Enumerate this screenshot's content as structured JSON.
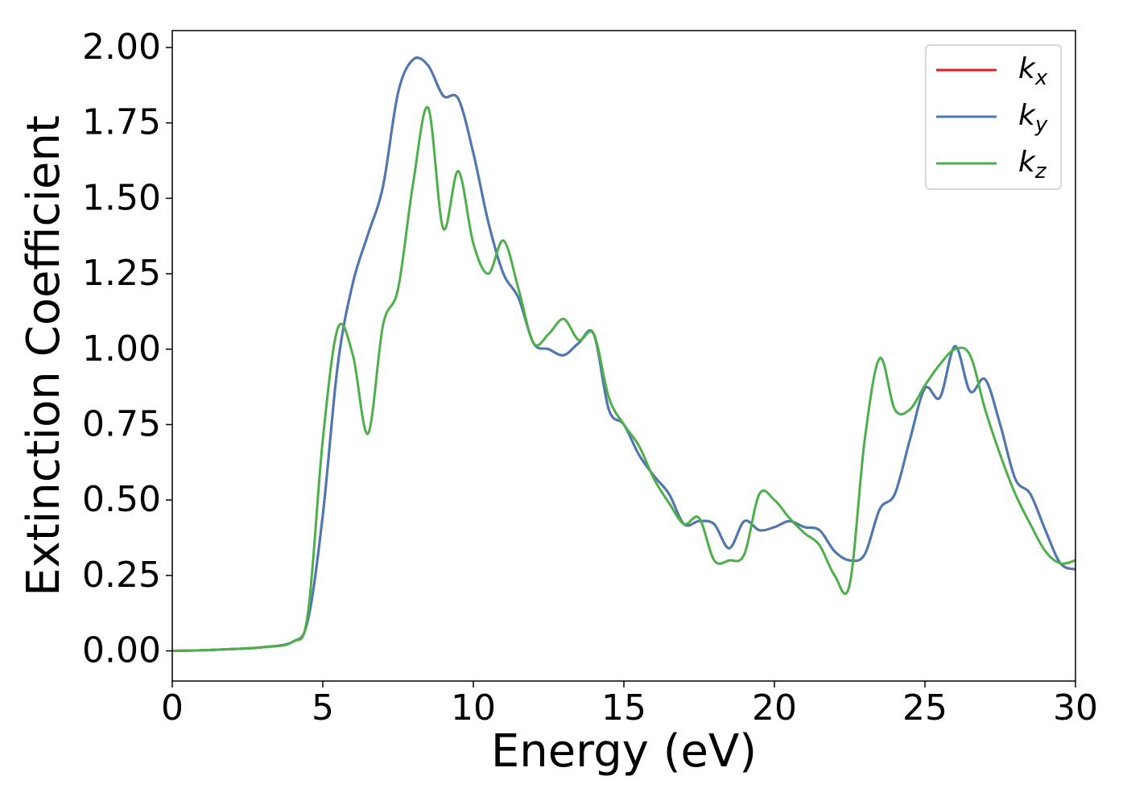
{
  "chart_data": {
    "type": "line",
    "xlabel": "Energy (eV)",
    "ylabel": "Extinction Coefficient",
    "x": [
      0,
      1,
      2,
      3,
      4,
      4.5,
      5,
      5.5,
      6,
      6.5,
      7,
      7.5,
      8,
      8.5,
      9,
      9.5,
      10,
      10.5,
      11,
      11.5,
      12,
      12.5,
      13,
      13.5,
      14,
      14.5,
      15,
      15.5,
      16,
      16.5,
      17,
      17.5,
      18,
      18.5,
      19,
      19.5,
      20,
      20.5,
      21,
      21.5,
      22,
      22.5,
      23,
      23.5,
      24,
      24.5,
      25,
      25.5,
      26,
      26.5,
      27,
      27.5,
      28,
      28.5,
      29,
      29.5,
      30
    ],
    "series": [
      {
        "name": "k",
        "subscript": "x",
        "color": "#e41a1c",
        "values": [
          0,
          0.002,
          0.006,
          0.012,
          0.03,
          0.1,
          0.45,
          0.95,
          1.22,
          1.38,
          1.54,
          1.85,
          1.96,
          1.94,
          1.84,
          1.83,
          1.65,
          1.42,
          1.25,
          1.17,
          1.02,
          1.0,
          0.98,
          1.02,
          1.05,
          0.8,
          0.75,
          0.65,
          0.58,
          0.52,
          0.42,
          0.43,
          0.42,
          0.34,
          0.43,
          0.4,
          0.41,
          0.43,
          0.41,
          0.4,
          0.33,
          0.3,
          0.32,
          0.47,
          0.52,
          0.7,
          0.87,
          0.84,
          1.01,
          0.86,
          0.9,
          0.75,
          0.57,
          0.52,
          0.4,
          0.29,
          0.27
        ]
      },
      {
        "name": "k",
        "subscript": "y",
        "color": "#4a7ab4",
        "values": [
          0,
          0.002,
          0.006,
          0.012,
          0.03,
          0.1,
          0.45,
          0.95,
          1.22,
          1.38,
          1.54,
          1.85,
          1.96,
          1.94,
          1.84,
          1.83,
          1.65,
          1.42,
          1.25,
          1.17,
          1.02,
          1.0,
          0.98,
          1.02,
          1.05,
          0.8,
          0.75,
          0.65,
          0.58,
          0.52,
          0.42,
          0.43,
          0.42,
          0.34,
          0.43,
          0.4,
          0.41,
          0.43,
          0.41,
          0.4,
          0.33,
          0.3,
          0.32,
          0.47,
          0.52,
          0.7,
          0.87,
          0.84,
          1.01,
          0.86,
          0.9,
          0.75,
          0.57,
          0.52,
          0.4,
          0.29,
          0.27
        ]
      },
      {
        "name": "k",
        "subscript": "z",
        "color": "#4daf4a",
        "values": [
          0,
          0.002,
          0.006,
          0.012,
          0.03,
          0.12,
          0.7,
          1.07,
          0.98,
          0.72,
          1.08,
          1.2,
          1.55,
          1.8,
          1.4,
          1.59,
          1.35,
          1.25,
          1.36,
          1.2,
          1.02,
          1.05,
          1.1,
          1.03,
          1.05,
          0.84,
          0.75,
          0.68,
          0.57,
          0.49,
          0.42,
          0.44,
          0.3,
          0.3,
          0.32,
          0.52,
          0.5,
          0.44,
          0.39,
          0.35,
          0.25,
          0.22,
          0.7,
          0.97,
          0.8,
          0.8,
          0.88,
          0.95,
          1.0,
          0.98,
          0.8,
          0.65,
          0.52,
          0.42,
          0.33,
          0.29,
          0.3
        ]
      }
    ],
    "xlim": [
      0,
      30
    ],
    "xticks": [
      0,
      5,
      10,
      15,
      20,
      25,
      30
    ],
    "ylim": [
      -0.1,
      2.056
    ],
    "yticks": [
      {
        "value": 0,
        "label": "0.00"
      },
      0.25,
      {
        "value": 0.5,
        "label": "0.50"
      },
      0.75,
      {
        "value": 1,
        "label": "1.00"
      },
      1.25,
      {
        "value": 1.5,
        "label": "1.50"
      },
      1.75,
      {
        "value": 2,
        "label": "2.00"
      }
    ],
    "grid": false,
    "legend": "upper right"
  }
}
